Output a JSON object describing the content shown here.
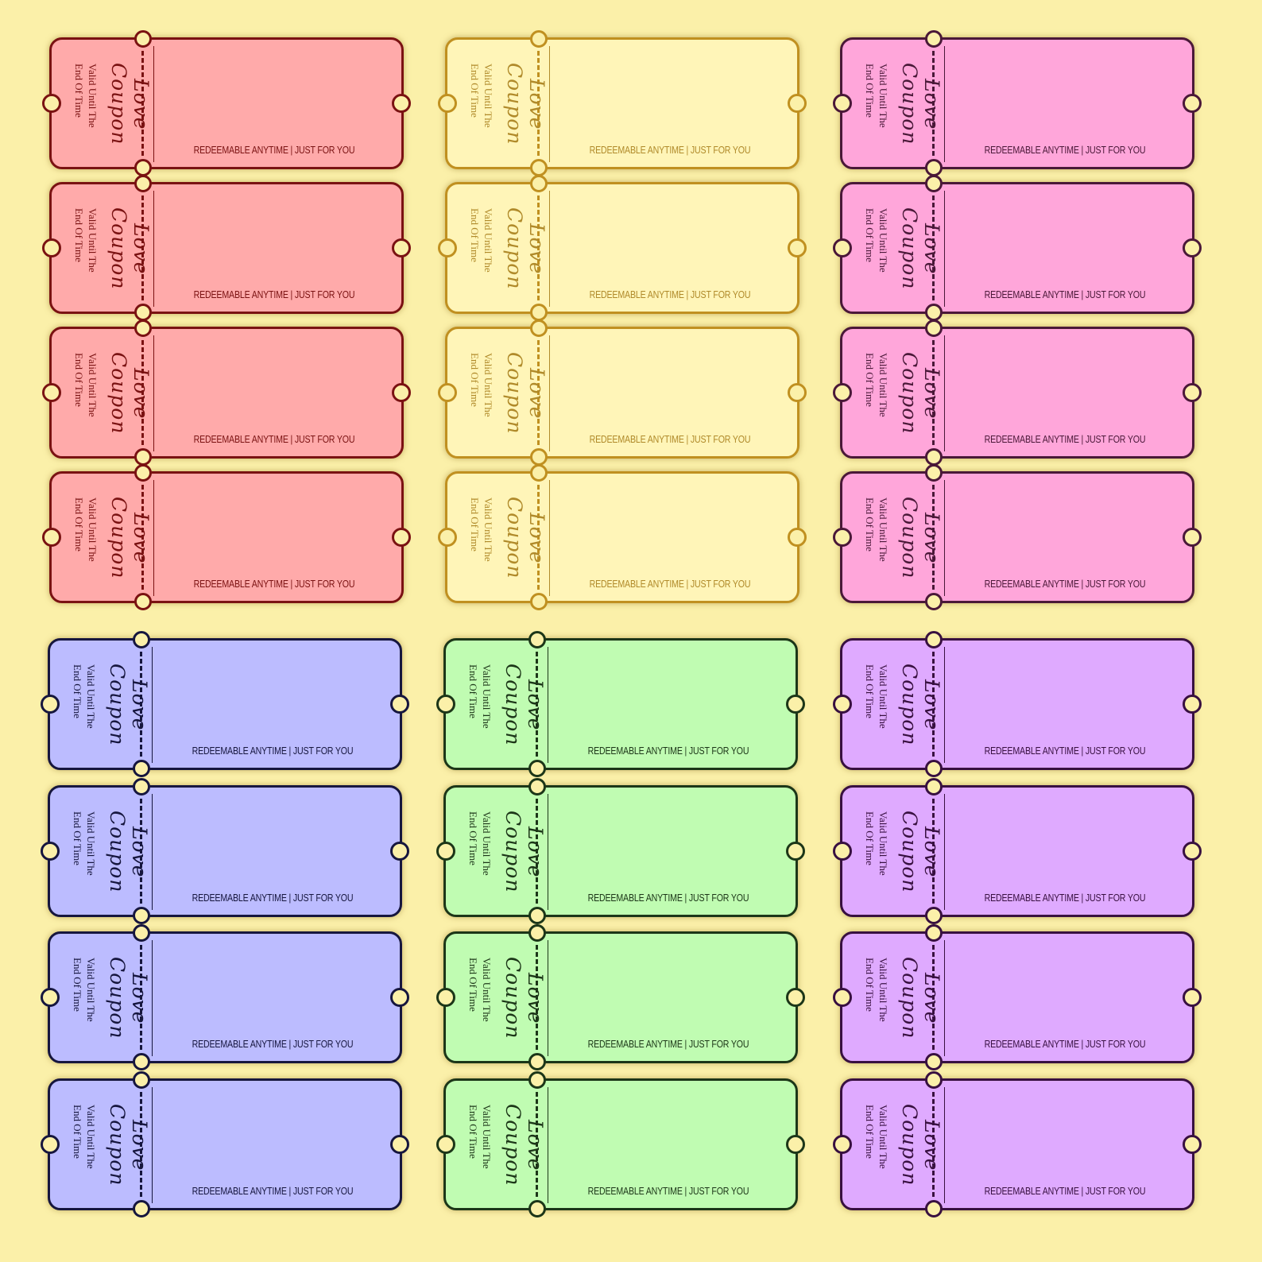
{
  "coupon": {
    "title": "Love Coupon",
    "subtitle_line1": "Valid Until The",
    "subtitle_line2": "End Of Time",
    "footer": "REDEEMABLE ANYTIME | JUST FOR YOU"
  },
  "coupons_per_group": 4,
  "groups": [
    {
      "name": "red",
      "fill": "#ffaaaa",
      "border": "#7a1212",
      "text": "#7a1212"
    },
    {
      "name": "yellow",
      "fill": "#fff5b8",
      "border": "#c09020",
      "text": "#b08a2a"
    },
    {
      "name": "pink",
      "fill": "#ffa6da",
      "border": "#4a1838",
      "text": "#4a1838"
    },
    {
      "name": "blue",
      "fill": "#bcbcff",
      "border": "#16163e",
      "text": "#16163e"
    },
    {
      "name": "green",
      "fill": "#c0fcb2",
      "border": "#1c3618",
      "text": "#1c3618"
    },
    {
      "name": "purple",
      "fill": "#dfaaff",
      "border": "#381040",
      "text": "#381040"
    }
  ]
}
